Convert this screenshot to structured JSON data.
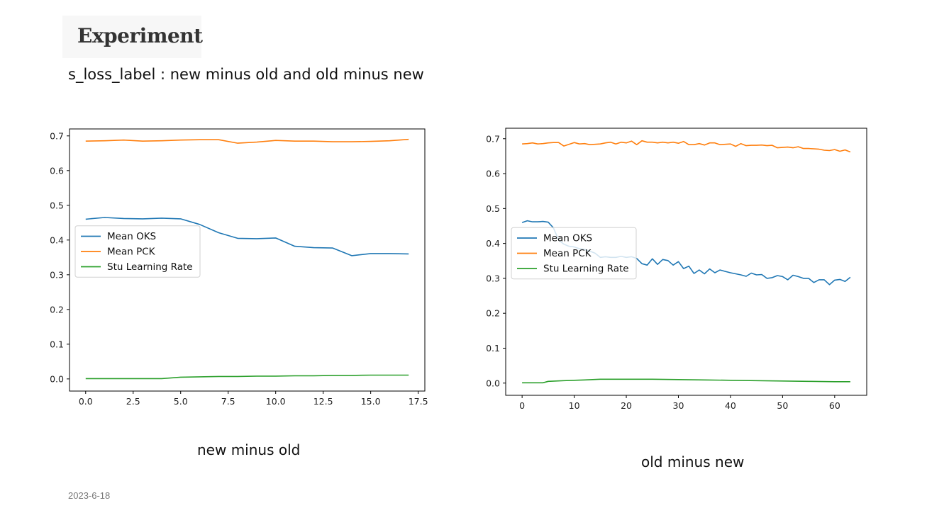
{
  "slide": {
    "title": "Experiment",
    "subtitle": "s_loss_label : new minus old and old minus new",
    "caption_left": "new minus old",
    "caption_right": "old minus new",
    "date": "2023-6-18"
  },
  "chart_data": [
    {
      "type": "line",
      "xlim": [
        -0.85,
        17.85
      ],
      "ylim": [
        -0.035,
        0.72
      ],
      "xticks": [
        0,
        2.5,
        5,
        7.5,
        10,
        12.5,
        15,
        17.5
      ],
      "xtick_labels": [
        "0.0",
        "2.5",
        "5.0",
        "7.5",
        "10.0",
        "12.5",
        "15.0",
        "17.5"
      ],
      "yticks": [
        0,
        0.1,
        0.2,
        0.3,
        0.4,
        0.5,
        0.6,
        0.7
      ],
      "ytick_labels": [
        "0.0",
        "0.1",
        "0.2",
        "0.3",
        "0.4",
        "0.5",
        "0.6",
        "0.7"
      ],
      "legend_position": "center-left",
      "series": [
        {
          "name": "Mean OKS",
          "color": "#1f77b4",
          "x": [
            0,
            1,
            2,
            3,
            4,
            5,
            6,
            7,
            8,
            9,
            10,
            11,
            12,
            13,
            14,
            15,
            16,
            17
          ],
          "y": [
            0.46,
            0.465,
            0.462,
            0.461,
            0.463,
            0.461,
            0.445,
            0.421,
            0.405,
            0.404,
            0.406,
            0.382,
            0.378,
            0.377,
            0.355,
            0.361,
            0.361,
            0.36
          ]
        },
        {
          "name": "Mean PCK",
          "color": "#ff7f0e",
          "x": [
            0,
            1,
            2,
            3,
            4,
            5,
            6,
            7,
            8,
            9,
            10,
            11,
            12,
            13,
            14,
            15,
            16,
            17
          ],
          "y": [
            0.685,
            0.686,
            0.688,
            0.685,
            0.686,
            0.688,
            0.689,
            0.689,
            0.679,
            0.682,
            0.687,
            0.685,
            0.685,
            0.683,
            0.683,
            0.684,
            0.686,
            0.69
          ]
        },
        {
          "name": "Stu Learning Rate",
          "color": "#2ca02c",
          "x": [
            0,
            1,
            2,
            3,
            4,
            5,
            6,
            7,
            8,
            9,
            10,
            11,
            12,
            13,
            14,
            15,
            16,
            17
          ],
          "y": [
            0.001,
            0.001,
            0.001,
            0.001,
            0.001,
            0.005,
            0.006,
            0.007,
            0.007,
            0.008,
            0.008,
            0.009,
            0.009,
            0.01,
            0.01,
            0.011,
            0.011,
            0.011
          ]
        }
      ]
    },
    {
      "type": "line",
      "xlim": [
        -3.15,
        66.15
      ],
      "ylim": [
        -0.035,
        0.73
      ],
      "xticks": [
        0,
        10,
        20,
        30,
        40,
        50,
        60
      ],
      "xtick_labels": [
        "0",
        "10",
        "20",
        "30",
        "40",
        "50",
        "60"
      ],
      "yticks": [
        0,
        0.1,
        0.2,
        0.3,
        0.4,
        0.5,
        0.6,
        0.7
      ],
      "ytick_labels": [
        "0.0",
        "0.1",
        "0.2",
        "0.3",
        "0.4",
        "0.5",
        "0.6",
        "0.7"
      ],
      "legend_position": "center-left",
      "series": [
        {
          "name": "Mean OKS",
          "color": "#1f77b4",
          "x": [
            0,
            1,
            2,
            3,
            4,
            5,
            6,
            7,
            8,
            9,
            10,
            11,
            12,
            13,
            14,
            15,
            16,
            17,
            18,
            19,
            20,
            21,
            22,
            23,
            24,
            25,
            26,
            27,
            28,
            29,
            30,
            31,
            32,
            33,
            34,
            35,
            36,
            37,
            38,
            39,
            40,
            41,
            42,
            43,
            44,
            45,
            46,
            47,
            48,
            49,
            50,
            51,
            52,
            53,
            54,
            55,
            56,
            57,
            58,
            59,
            60,
            61,
            62,
            63
          ],
          "y": [
            0.46,
            0.465,
            0.462,
            0.462,
            0.463,
            0.461,
            0.445,
            0.41,
            0.398,
            0.392,
            0.39,
            0.385,
            0.383,
            0.378,
            0.372,
            0.36,
            0.362,
            0.36,
            0.36,
            0.363,
            0.36,
            0.362,
            0.357,
            0.342,
            0.338,
            0.356,
            0.34,
            0.354,
            0.351,
            0.338,
            0.348,
            0.328,
            0.335,
            0.314,
            0.324,
            0.313,
            0.327,
            0.316,
            0.324,
            0.32,
            0.316,
            0.313,
            0.31,
            0.306,
            0.315,
            0.31,
            0.311,
            0.3,
            0.302,
            0.308,
            0.305,
            0.296,
            0.309,
            0.305,
            0.3,
            0.3,
            0.288,
            0.296,
            0.296,
            0.282,
            0.295,
            0.297,
            0.291,
            0.303
          ]
        },
        {
          "name": "Mean PCK",
          "color": "#ff7f0e",
          "x": [
            0,
            1,
            2,
            3,
            4,
            5,
            6,
            7,
            8,
            9,
            10,
            11,
            12,
            13,
            14,
            15,
            16,
            17,
            18,
            19,
            20,
            21,
            22,
            23,
            24,
            25,
            26,
            27,
            28,
            29,
            30,
            31,
            32,
            33,
            34,
            35,
            36,
            37,
            38,
            39,
            40,
            41,
            42,
            43,
            44,
            45,
            46,
            47,
            48,
            49,
            50,
            51,
            52,
            53,
            54,
            55,
            56,
            57,
            58,
            59,
            60,
            61,
            62,
            63
          ],
          "y": [
            0.685,
            0.686,
            0.688,
            0.685,
            0.686,
            0.688,
            0.689,
            0.689,
            0.679,
            0.684,
            0.689,
            0.685,
            0.686,
            0.683,
            0.684,
            0.685,
            0.688,
            0.69,
            0.685,
            0.69,
            0.688,
            0.693,
            0.683,
            0.694,
            0.69,
            0.69,
            0.688,
            0.69,
            0.688,
            0.69,
            0.687,
            0.692,
            0.683,
            0.683,
            0.686,
            0.682,
            0.688,
            0.688,
            0.683,
            0.684,
            0.685,
            0.678,
            0.686,
            0.68,
            0.681,
            0.681,
            0.682,
            0.68,
            0.681,
            0.674,
            0.675,
            0.676,
            0.674,
            0.677,
            0.672,
            0.672,
            0.671,
            0.67,
            0.667,
            0.666,
            0.669,
            0.664,
            0.668,
            0.662
          ]
        },
        {
          "name": "Stu Learning Rate",
          "color": "#2ca02c",
          "x": [
            0,
            1,
            2,
            3,
            4,
            5,
            8,
            12,
            15,
            20,
            25,
            30,
            35,
            40,
            45,
            50,
            55,
            60,
            63
          ],
          "y": [
            0.001,
            0.001,
            0.001,
            0.001,
            0.001,
            0.005,
            0.007,
            0.009,
            0.011,
            0.011,
            0.011,
            0.01,
            0.009,
            0.008,
            0.007,
            0.006,
            0.005,
            0.004,
            0.004
          ]
        }
      ]
    }
  ]
}
